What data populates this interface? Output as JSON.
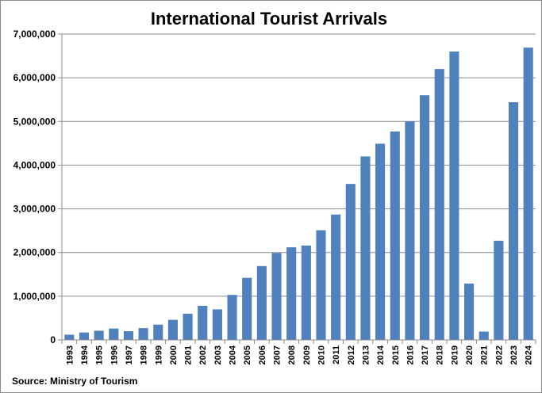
{
  "chart_data": {
    "type": "bar",
    "title": "International Tourist Arrivals",
    "source": "Source:  Ministry of Tourism",
    "xlabel": "",
    "ylabel": "",
    "ylim": [
      0,
      7000000
    ],
    "yticks": [
      {
        "value": 0,
        "label": "0"
      },
      {
        "value": 1000000,
        "label": "1,000,000"
      },
      {
        "value": 2000000,
        "label": "2,000,000"
      },
      {
        "value": 3000000,
        "label": "3,000,000"
      },
      {
        "value": 4000000,
        "label": "4,000,000"
      },
      {
        "value": 5000000,
        "label": "5,000,000"
      },
      {
        "value": 6000000,
        "label": "6,000,000"
      },
      {
        "value": 7000000,
        "label": "7,000,000"
      }
    ],
    "grid": true,
    "bar_color": "#4f81bd",
    "categories": [
      "1993",
      "1994",
      "1995",
      "1996",
      "1997",
      "1998",
      "1999",
      "2000",
      "2001",
      "2002",
      "2003",
      "2004",
      "2005",
      "2006",
      "2007",
      "2008",
      "2009",
      "2010",
      "2011",
      "2012",
      "2013",
      "2014",
      "2015",
      "2016",
      "2017",
      "2018",
      "2019",
      "2020",
      "2021",
      "2022",
      "2023",
      "2024"
    ],
    "values": [
      120000,
      170000,
      210000,
      260000,
      200000,
      270000,
      350000,
      460000,
      600000,
      780000,
      700000,
      1030000,
      1420000,
      1690000,
      1990000,
      2120000,
      2160000,
      2510000,
      2870000,
      3570000,
      4200000,
      4490000,
      4770000,
      5000000,
      5600000,
      6200000,
      6600000,
      1290000,
      190000,
      2270000,
      5440000,
      6690000
    ]
  }
}
